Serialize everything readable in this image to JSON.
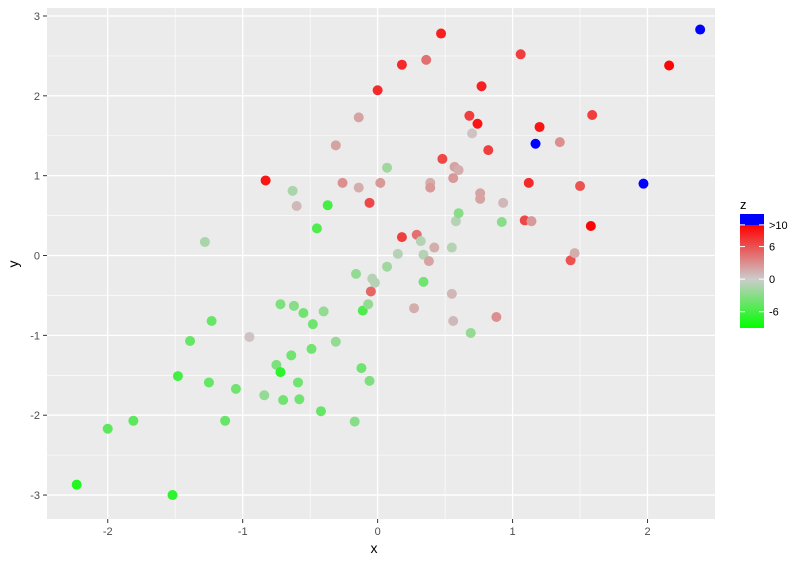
{
  "chart_data": {
    "type": "scatter",
    "title": "",
    "xlabel": "x",
    "ylabel": "y",
    "xlim": [
      -2.45,
      2.5
    ],
    "ylim": [
      -3.3,
      3.1
    ],
    "xticks": [
      -2,
      -1,
      0,
      1,
      2
    ],
    "yticks": [
      -3,
      -2,
      -1,
      0,
      1,
      2,
      3
    ],
    "xtick_labels": [
      "-2",
      "-1",
      "0",
      "1",
      "2"
    ],
    "ytick_labels": [
      "-3",
      "-2",
      "-1",
      "0",
      "1",
      "2",
      "3"
    ],
    "grid": true,
    "panel_background": "#ebebeb",
    "grid_color": "#ffffff",
    "legend": {
      "title": "z",
      "position": "right",
      "labels": [
        ">10",
        "6",
        "0",
        "-6"
      ],
      "label_values": [
        10,
        6,
        0,
        -6
      ],
      "range": [
        -9,
        12
      ],
      "colors": {
        "low": "#00ff00",
        "mid": "#cccccc",
        "high": "#ff0000",
        "over": "#0000ff"
      }
    },
    "points": [
      {
        "x": -2.23,
        "y": -2.87,
        "z": -7.5
      },
      {
        "x": -2.0,
        "y": -2.17,
        "z": -5.0
      },
      {
        "x": -1.81,
        "y": -2.07,
        "z": -5.0
      },
      {
        "x": -1.52,
        "y": -3.0,
        "z": -7.0
      },
      {
        "x": -1.48,
        "y": -1.51,
        "z": -6.0
      },
      {
        "x": -1.39,
        "y": -1.07,
        "z": -4.5
      },
      {
        "x": -1.28,
        "y": 0.17,
        "z": -1.5
      },
      {
        "x": -1.25,
        "y": -1.59,
        "z": -4.5
      },
      {
        "x": -1.23,
        "y": -0.82,
        "z": -4.5
      },
      {
        "x": -1.13,
        "y": -2.07,
        "z": -4.5
      },
      {
        "x": -1.05,
        "y": -1.67,
        "z": -4.0
      },
      {
        "x": -0.95,
        "y": -1.02,
        "z": 0.5
      },
      {
        "x": -0.84,
        "y": -1.75,
        "z": -2.5
      },
      {
        "x": -0.83,
        "y": 0.94,
        "z": 9.0
      },
      {
        "x": -0.75,
        "y": -1.37,
        "z": -3.5
      },
      {
        "x": -0.72,
        "y": -0.61,
        "z": -3.5
      },
      {
        "x": -0.72,
        "y": -1.46,
        "z": -7.0
      },
      {
        "x": -0.7,
        "y": -1.81,
        "z": -4.0
      },
      {
        "x": -0.64,
        "y": -1.25,
        "z": -4.0
      },
      {
        "x": -0.63,
        "y": 0.81,
        "z": -1.5
      },
      {
        "x": -0.62,
        "y": -0.63,
        "z": -3.0
      },
      {
        "x": -0.6,
        "y": 0.62,
        "z": 1.0
      },
      {
        "x": -0.59,
        "y": -1.59,
        "z": -4.0
      },
      {
        "x": -0.58,
        "y": -1.8,
        "z": -4.0
      },
      {
        "x": -0.55,
        "y": -0.72,
        "z": -4.0
      },
      {
        "x": -0.49,
        "y": -1.17,
        "z": -4.0
      },
      {
        "x": -0.48,
        "y": -0.86,
        "z": -4.0
      },
      {
        "x": -0.45,
        "y": 0.34,
        "z": -5.5
      },
      {
        "x": -0.42,
        "y": -1.95,
        "z": -4.5
      },
      {
        "x": -0.4,
        "y": -0.7,
        "z": -2.5
      },
      {
        "x": -0.37,
        "y": 0.63,
        "z": -6.0
      },
      {
        "x": -0.31,
        "y": -1.08,
        "z": -2.5
      },
      {
        "x": -0.31,
        "y": 1.38,
        "z": 2.0
      },
      {
        "x": -0.26,
        "y": 0.91,
        "z": 3.0
      },
      {
        "x": -0.17,
        "y": -2.08,
        "z": -3.0
      },
      {
        "x": -0.16,
        "y": -0.23,
        "z": -2.5
      },
      {
        "x": -0.14,
        "y": 1.73,
        "z": 2.0
      },
      {
        "x": -0.14,
        "y": 0.85,
        "z": 1.5
      },
      {
        "x": -0.12,
        "y": -1.41,
        "z": -4.0
      },
      {
        "x": -0.11,
        "y": -0.69,
        "z": -5.5
      },
      {
        "x": -0.07,
        "y": -0.61,
        "z": -2.5
      },
      {
        "x": -0.06,
        "y": -1.57,
        "z": -3.5
      },
      {
        "x": -0.06,
        "y": 0.66,
        "z": 6.5
      },
      {
        "x": -0.05,
        "y": -0.45,
        "z": 5.0
      },
      {
        "x": -0.04,
        "y": -0.29,
        "z": -1.0
      },
      {
        "x": -0.02,
        "y": -0.34,
        "z": -1.0
      },
      {
        "x": 0.0,
        "y": 2.07,
        "z": 8.0
      },
      {
        "x": 0.02,
        "y": 0.91,
        "z": 2.5
      },
      {
        "x": 0.07,
        "y": -0.14,
        "z": -2.0
      },
      {
        "x": 0.07,
        "y": 1.1,
        "z": -2.0
      },
      {
        "x": 0.15,
        "y": 0.02,
        "z": -1.0
      },
      {
        "x": 0.18,
        "y": 2.39,
        "z": 8.0
      },
      {
        "x": 0.18,
        "y": 0.23,
        "z": 7.0
      },
      {
        "x": 0.27,
        "y": -0.66,
        "z": 1.5
      },
      {
        "x": 0.29,
        "y": 0.26,
        "z": 4.5
      },
      {
        "x": 0.32,
        "y": 0.18,
        "z": -1.0
      },
      {
        "x": 0.34,
        "y": 0.01,
        "z": -1.0
      },
      {
        "x": 0.34,
        "y": -0.33,
        "z": -4.0
      },
      {
        "x": 0.36,
        "y": 2.45,
        "z": 4.5
      },
      {
        "x": 0.38,
        "y": -0.07,
        "z": 2.0
      },
      {
        "x": 0.39,
        "y": 0.91,
        "z": 1.5
      },
      {
        "x": 0.39,
        "y": 0.85,
        "z": 2.5
      },
      {
        "x": 0.42,
        "y": 0.1,
        "z": 1.5
      },
      {
        "x": 0.47,
        "y": 2.78,
        "z": 8.5
      },
      {
        "x": 0.48,
        "y": 1.21,
        "z": 6.5
      },
      {
        "x": 0.55,
        "y": 0.1,
        "z": -1.0
      },
      {
        "x": 0.55,
        "y": -0.48,
        "z": 1.0
      },
      {
        "x": 0.56,
        "y": 0.97,
        "z": 2.5
      },
      {
        "x": 0.56,
        "y": -0.82,
        "z": 1.0
      },
      {
        "x": 0.57,
        "y": 1.11,
        "z": 2.0
      },
      {
        "x": 0.58,
        "y": 0.43,
        "z": -1.0
      },
      {
        "x": 0.6,
        "y": 0.53,
        "z": -3.0
      },
      {
        "x": 0.6,
        "y": 1.07,
        "z": 1.5
      },
      {
        "x": 0.68,
        "y": 1.75,
        "z": 7.0
      },
      {
        "x": 0.69,
        "y": -0.97,
        "z": -2.5
      },
      {
        "x": 0.7,
        "y": 1.53,
        "z": 0.5
      },
      {
        "x": 0.74,
        "y": 1.65,
        "z": 9.0
      },
      {
        "x": 0.76,
        "y": 0.78,
        "z": 2.0
      },
      {
        "x": 0.76,
        "y": 0.71,
        "z": 2.0
      },
      {
        "x": 0.77,
        "y": 2.12,
        "z": 8.5
      },
      {
        "x": 0.82,
        "y": 1.32,
        "z": 7.0
      },
      {
        "x": 0.88,
        "y": -0.77,
        "z": 3.0
      },
      {
        "x": 0.92,
        "y": 0.42,
        "z": -3.0
      },
      {
        "x": 0.93,
        "y": 0.66,
        "z": 1.0
      },
      {
        "x": 1.06,
        "y": 2.52,
        "z": 7.0
      },
      {
        "x": 1.09,
        "y": 0.44,
        "z": 6.5
      },
      {
        "x": 1.12,
        "y": 0.91,
        "z": 8.0
      },
      {
        "x": 1.14,
        "y": 0.43,
        "z": 2.5
      },
      {
        "x": 1.17,
        "y": 1.4,
        "z": 12.0
      },
      {
        "x": 1.2,
        "y": 1.61,
        "z": 9.0
      },
      {
        "x": 1.35,
        "y": 1.42,
        "z": 3.0
      },
      {
        "x": 1.43,
        "y": -0.06,
        "z": 6.0
      },
      {
        "x": 1.46,
        "y": 0.03,
        "z": 1.5
      },
      {
        "x": 1.5,
        "y": 0.87,
        "z": 6.0
      },
      {
        "x": 1.58,
        "y": 0.37,
        "z": 9.8
      },
      {
        "x": 1.59,
        "y": 1.76,
        "z": 7.0
      },
      {
        "x": 1.97,
        "y": 0.9,
        "z": 12.0
      },
      {
        "x": 2.16,
        "y": 2.38,
        "z": 9.8
      },
      {
        "x": 2.39,
        "y": 2.83,
        "z": 12.0
      }
    ]
  }
}
